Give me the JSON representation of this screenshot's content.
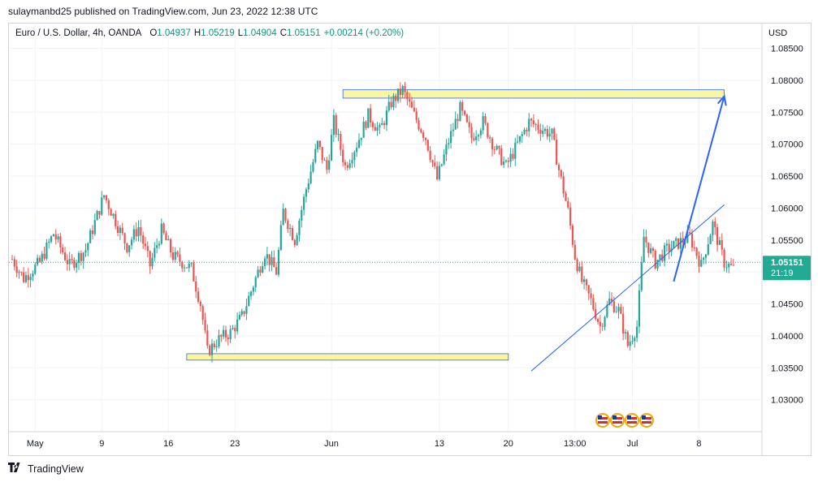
{
  "header": {
    "published_text": "sulaymanbd25 published on TradingView.com, Jun 23, 2022 12:38 UTC"
  },
  "legend": {
    "symbol": "Euro / U.S. Dollar, 4h, OANDA",
    "open_label": "O",
    "open": "1.04937",
    "high_label": "H",
    "high": "1.05219",
    "low_label": "L",
    "low": "1.04904",
    "close_label": "C",
    "close": "1.05151",
    "change": "+0.00214 (+0.20%)"
  },
  "footer": {
    "brand": "TradingView",
    "logo_icon": "tradingview-logo-icon"
  },
  "colors": {
    "up": "#26a69a",
    "down": "#ef5350",
    "zone_fill": "#fbf58e",
    "zone_stroke": "#2962ff",
    "trendline": "#2962ff",
    "price_tag": "#22ab94"
  },
  "chart_data": {
    "type": "candlestick",
    "currency_label": "USD",
    "ylim": [
      1.025,
      1.089
    ],
    "y_ticks": [
      "1.08500",
      "1.08000",
      "1.07500",
      "1.07000",
      "1.06500",
      "1.06000",
      "1.05500",
      "1.05000",
      "1.04500",
      "1.04000",
      "1.03500",
      "1.03000"
    ],
    "x_ticks": [
      "May",
      "9",
      "16",
      "23",
      "Jun",
      "13",
      "20",
      "13:00",
      "Jul",
      "8"
    ],
    "current_price": "1.05151",
    "countdown": "21:19",
    "price_path": [
      [
        0,
        1.052
      ],
      [
        5,
        1.049
      ],
      [
        12,
        1.0515
      ],
      [
        18,
        1.056
      ],
      [
        25,
        1.051
      ],
      [
        32,
        1.0535
      ],
      [
        40,
        1.062
      ],
      [
        45,
        1.058
      ],
      [
        50,
        1.054
      ],
      [
        55,
        1.057
      ],
      [
        60,
        1.051
      ],
      [
        65,
        1.0565
      ],
      [
        70,
        1.0525
      ],
      [
        78,
        1.0505
      ],
      [
        82,
        1.045
      ],
      [
        85,
        1.0375
      ],
      [
        90,
        1.0395
      ],
      [
        95,
        1.0405
      ],
      [
        100,
        1.043
      ],
      [
        105,
        1.048
      ],
      [
        110,
        1.053
      ],
      [
        115,
        1.05
      ],
      [
        118,
        1.0595
      ],
      [
        123,
        1.055
      ],
      [
        128,
        1.063
      ],
      [
        133,
        1.07
      ],
      [
        137,
        1.066
      ],
      [
        140,
        1.0735
      ],
      [
        145,
        1.0665
      ],
      [
        150,
        1.07
      ],
      [
        155,
        1.0745
      ],
      [
        160,
        1.072
      ],
      [
        165,
        1.0765
      ],
      [
        170,
        1.0785
      ],
      [
        175,
        1.0745
      ],
      [
        180,
        1.071
      ],
      [
        185,
        1.0645
      ],
      [
        190,
        1.0705
      ],
      [
        195,
        1.0755
      ],
      [
        200,
        1.071
      ],
      [
        205,
        1.0735
      ],
      [
        210,
        1.0695
      ],
      [
        215,
        1.0665
      ],
      [
        220,
        1.07
      ],
      [
        225,
        1.0735
      ],
      [
        230,
        1.0725
      ],
      [
        235,
        1.0715
      ],
      [
        238,
        1.066
      ],
      [
        242,
        1.0595
      ],
      [
        245,
        1.0525
      ],
      [
        248,
        1.0485
      ],
      [
        252,
        1.0455
      ],
      [
        256,
        1.0415
      ],
      [
        260,
        1.0455
      ],
      [
        264,
        1.044
      ],
      [
        268,
        1.0385
      ],
      [
        272,
        1.0415
      ],
      [
        275,
        1.0555
      ],
      [
        280,
        1.0515
      ],
      [
        285,
        1.0535
      ],
      [
        290,
        1.0545
      ],
      [
        295,
        1.0555
      ],
      [
        300,
        1.051
      ],
      [
        305,
        1.0575
      ],
      [
        310,
        1.0515
      ],
      [
        314,
        1.0505
      ]
    ],
    "annotations": {
      "resistance_zone": {
        "x0": 144,
        "x1": 310,
        "y_top": 1.0785,
        "y_bottom": 1.0772
      },
      "support_zone": {
        "x0": 76,
        "x1": 216,
        "y_top": 1.0372,
        "y_bottom": 1.0362
      },
      "arrow": {
        "from": [
          288,
          1.0485
        ],
        "to": [
          310,
          1.0775
        ]
      },
      "trendline": {
        "from": [
          226,
          1.0345
        ],
        "to": [
          310,
          1.0605
        ]
      }
    },
    "grid": true
  }
}
